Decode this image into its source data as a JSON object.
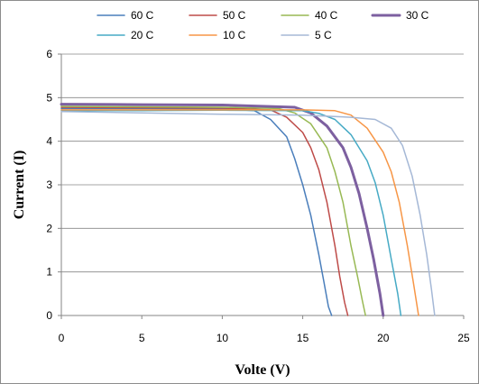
{
  "chart_data": {
    "type": "line",
    "title": "",
    "xlabel": "Volte (V)",
    "ylabel": "Current (I)",
    "xlim": [
      0,
      25
    ],
    "ylim": [
      0,
      6
    ],
    "xticks": [
      0,
      5,
      10,
      15,
      20,
      25
    ],
    "yticks": [
      0,
      1,
      2,
      3,
      4,
      5,
      6
    ],
    "grid": "horizontal",
    "legend_position": "top",
    "series": [
      {
        "name": "60 C",
        "color": "#4a7ebb",
        "width": 1.5,
        "x": [
          0,
          5,
          10,
          12,
          13,
          14,
          14.5,
          15,
          15.5,
          16,
          16.3,
          16.6,
          16.8
        ],
        "y": [
          4.75,
          4.75,
          4.74,
          4.7,
          4.5,
          4.1,
          3.6,
          3.0,
          2.3,
          1.4,
          0.8,
          0.2,
          0
        ]
      },
      {
        "name": "50 C",
        "color": "#be4b48",
        "width": 1.5,
        "x": [
          0,
          5,
          10,
          13,
          14,
          15,
          15.5,
          16,
          16.5,
          17,
          17.3,
          17.6,
          17.8
        ],
        "y": [
          4.78,
          4.77,
          4.76,
          4.72,
          4.55,
          4.2,
          3.85,
          3.35,
          2.6,
          1.6,
          0.9,
          0.3,
          0
        ]
      },
      {
        "name": "40 C",
        "color": "#98b954",
        "width": 1.5,
        "x": [
          0,
          5,
          10,
          13.5,
          14.5,
          15.5,
          16.5,
          17,
          17.5,
          18,
          18.4,
          18.7,
          18.9
        ],
        "y": [
          4.8,
          4.79,
          4.78,
          4.75,
          4.65,
          4.4,
          3.85,
          3.3,
          2.6,
          1.6,
          0.9,
          0.35,
          0
        ]
      },
      {
        "name": "30 C",
        "color": "#7d60a0",
        "width": 3,
        "x": [
          0,
          5,
          10,
          14.5,
          15.5,
          16.5,
          17.5,
          18,
          18.5,
          19,
          19.4,
          19.8,
          20
        ],
        "y": [
          4.85,
          4.84,
          4.83,
          4.78,
          4.65,
          4.35,
          3.85,
          3.4,
          2.8,
          2.0,
          1.3,
          0.5,
          0
        ]
      },
      {
        "name": "20 C",
        "color": "#46aac5",
        "width": 1.5,
        "x": [
          0,
          5,
          10,
          15,
          16,
          17,
          18,
          19,
          19.5,
          20,
          20.5,
          20.9,
          21.1
        ],
        "y": [
          4.7,
          4.7,
          4.71,
          4.7,
          4.64,
          4.5,
          4.15,
          3.55,
          3.05,
          2.3,
          1.3,
          0.5,
          0
        ]
      },
      {
        "name": "10 C",
        "color": "#f79646",
        "width": 1.5,
        "x": [
          0,
          5,
          10,
          15,
          17,
          18,
          19,
          20,
          20.5,
          21,
          21.5,
          21.9,
          22.2
        ],
        "y": [
          4.72,
          4.72,
          4.72,
          4.72,
          4.7,
          4.6,
          4.3,
          3.75,
          3.3,
          2.6,
          1.6,
          0.7,
          0
        ]
      },
      {
        "name": "5 C",
        "color": "#a5b8d6",
        "width": 1.5,
        "x": [
          0,
          5,
          10,
          15,
          18,
          19.5,
          20.5,
          21.2,
          21.8,
          22.3,
          22.7,
          23,
          23.2
        ],
        "y": [
          4.68,
          4.65,
          4.62,
          4.6,
          4.55,
          4.5,
          4.3,
          3.9,
          3.2,
          2.3,
          1.4,
          0.6,
          0
        ]
      }
    ]
  }
}
